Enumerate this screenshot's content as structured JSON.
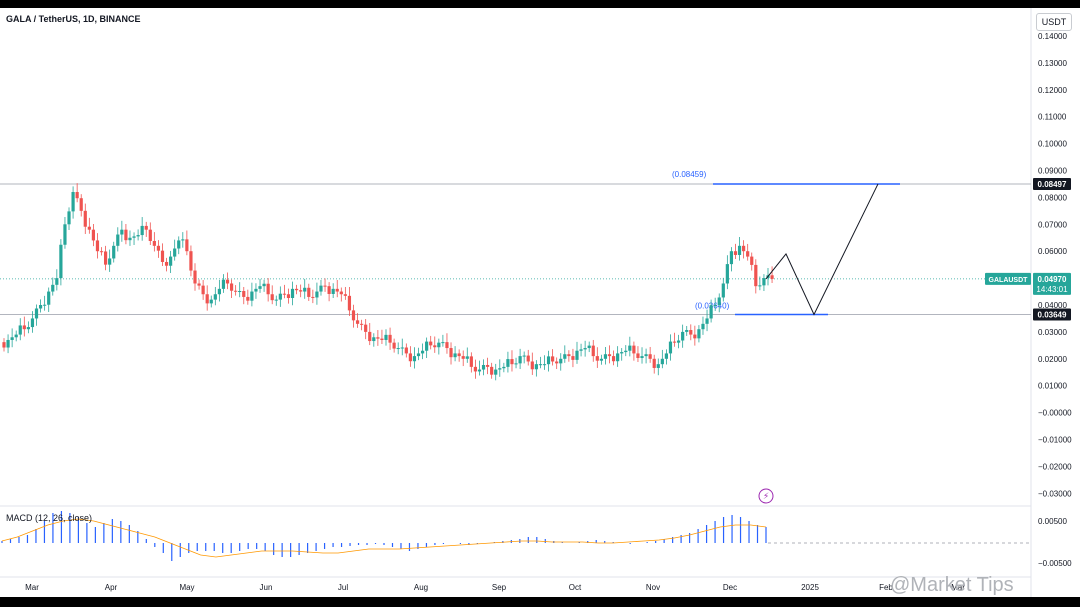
{
  "header": {
    "title": "GALA / TetherUS, 1D, BINANCE",
    "currency": "USDT"
  },
  "macd": {
    "label": "MACD (12, 26, close)"
  },
  "watermark": "@Market Tips",
  "colors": {
    "up": "#26a69a",
    "down": "#ef5350",
    "blue": "#2962ff",
    "macd_hist": "#2962ff",
    "signal": "#ff9800",
    "tag_green": "#26a69a"
  },
  "chart_data": {
    "type": "candlestick",
    "symbol": "GALAUSDT",
    "y_ticks": [
      "0.14000",
      "0.13000",
      "0.12000",
      "0.11000",
      "0.10000",
      "0.09000",
      "0.08000",
      "0.07000",
      "0.06000",
      "0.05000",
      "0.04000",
      "0.03000",
      "0.02000",
      "0.01000",
      "−0.00000",
      "−0.01000",
      "−0.02000",
      "−0.03000"
    ],
    "macd_ticks": [
      "0.00500",
      "−0.00500"
    ],
    "x_ticks": [
      "Mar",
      "Apr",
      "May",
      "Jun",
      "Jul",
      "Aug",
      "Sep",
      "Oct",
      "Nov",
      "Dec",
      "2025",
      "Feb",
      "Mar"
    ],
    "ylim": [
      -0.033,
      0.145
    ],
    "price_series": [
      0.027,
      0.029,
      0.031,
      0.035,
      0.04,
      0.045,
      0.05,
      0.07,
      0.082,
      0.075,
      0.068,
      0.06,
      0.055,
      0.062,
      0.068,
      0.065,
      0.066,
      0.068,
      0.062,
      0.056,
      0.058,
      0.064,
      0.06,
      0.048,
      0.044,
      0.042,
      0.046,
      0.048,
      0.045,
      0.043,
      0.045,
      0.047,
      0.044,
      0.042,
      0.044,
      0.046,
      0.045,
      0.043,
      0.045,
      0.047,
      0.046,
      0.044,
      0.038,
      0.033,
      0.03,
      0.028,
      0.027,
      0.026,
      0.024,
      0.022,
      0.021,
      0.023,
      0.025,
      0.026,
      0.024,
      0.022,
      0.02,
      0.017,
      0.016,
      0.017,
      0.016,
      0.017,
      0.018,
      0.021,
      0.019,
      0.018,
      0.018,
      0.019,
      0.02,
      0.021,
      0.023,
      0.024,
      0.021,
      0.02,
      0.021,
      0.022,
      0.023,
      0.022,
      0.021,
      0.02,
      0.018,
      0.022,
      0.026,
      0.03,
      0.029,
      0.031,
      0.035,
      0.04,
      0.048,
      0.06,
      0.062,
      0.058,
      0.047,
      0.05,
      0.0497
    ],
    "levels": [
      {
        "name": "resistance",
        "value": 0.08497,
        "label": "0.08497",
        "annotation": "(0.08459)"
      },
      {
        "name": "support",
        "value": 0.03649,
        "label": "0.03649",
        "annotation": "(0.03640)"
      }
    ],
    "current_price": {
      "symbol": "GALAUSDT",
      "value": "0.04970",
      "countdown": "14:43:01"
    },
    "projection_path": [
      0.0497,
      0.059,
      0.0365,
      0.085
    ]
  }
}
